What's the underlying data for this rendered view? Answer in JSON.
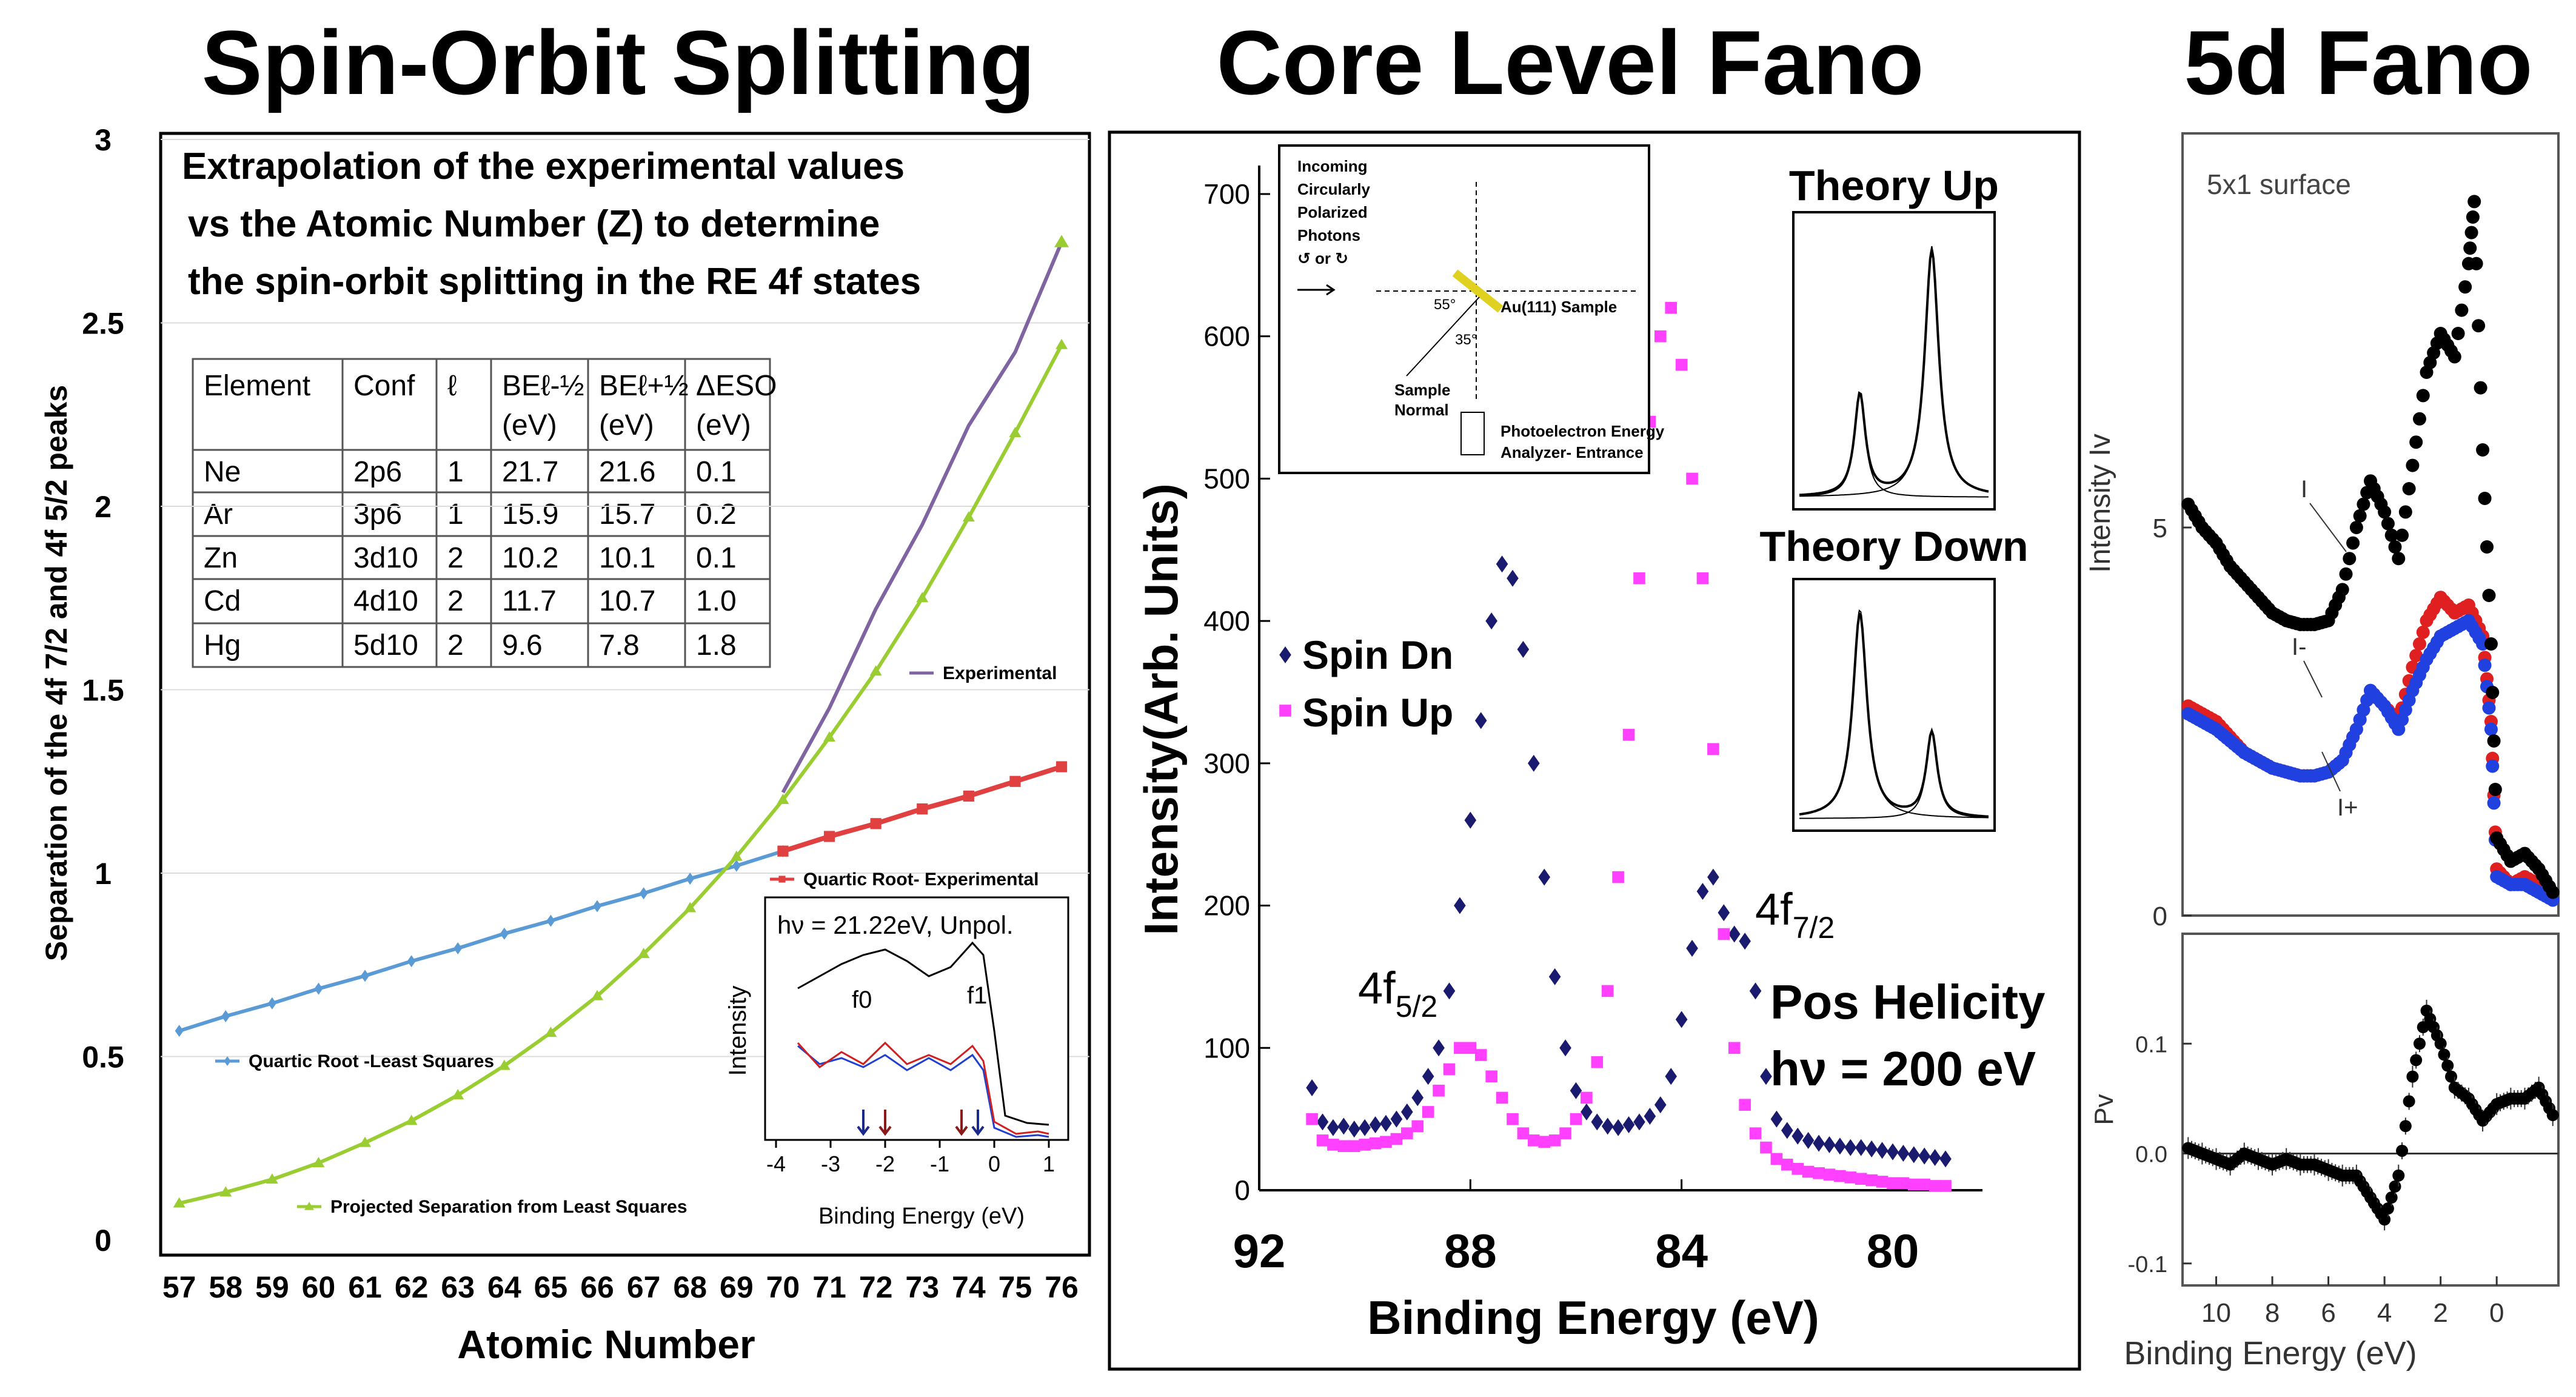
{
  "chart_data": [
    {
      "type": "line",
      "panel_title": "Spin-Orbit Splitting",
      "annotation": [
        "Extrapolation of the experimental values",
        "vs the Atomic Number (Z) to determine",
        "the spin-orbit splitting  in the RE 4f states"
      ],
      "xlabel": "Atomic Number",
      "ylabel": "Separation of the 4f 7/2 and 4f 5/2 peaks",
      "xlim": [
        56.6,
        76.6
      ],
      "ylim": [
        0,
        3
      ],
      "x_ticks": [
        57,
        58,
        59,
        60,
        61,
        62,
        63,
        64,
        65,
        66,
        67,
        68,
        69,
        70,
        71,
        72,
        73,
        74,
        75,
        76
      ],
      "y_ticks": [
        0,
        0.5,
        1,
        1.5,
        2,
        2.5,
        3
      ],
      "y_tick_labels": [
        "0",
        "0.5",
        "1",
        "1.5",
        "2",
        "2.5",
        "3"
      ],
      "series": [
        {
          "name": "Quartic Root -Least Squares",
          "color": "#5b9bd5",
          "marker": "diamond",
          "x": [
            57,
            58,
            59,
            60,
            61,
            62,
            63,
            64,
            65,
            66,
            67,
            68,
            69,
            70
          ],
          "y": [
            0.57,
            0.61,
            0.645,
            0.685,
            0.72,
            0.76,
            0.795,
            0.835,
            0.87,
            0.91,
            0.945,
            0.985,
            1.02,
            1.06
          ]
        },
        {
          "name": "Quartic Root- Experimental",
          "color": "#e04040",
          "marker": "square",
          "x": [
            70,
            71,
            72,
            73,
            74,
            75,
            76
          ],
          "y": [
            1.06,
            1.1,
            1.135,
            1.175,
            1.21,
            1.25,
            1.29
          ]
        },
        {
          "name": "Projected Separation from Least Squares",
          "color": "#9acd32",
          "marker": "triangle",
          "x": [
            57,
            58,
            59,
            60,
            61,
            62,
            63,
            64,
            65,
            66,
            67,
            68,
            69,
            70,
            71,
            72,
            73,
            74,
            75,
            76
          ],
          "y": [
            0.1,
            0.13,
            0.165,
            0.21,
            0.265,
            0.325,
            0.395,
            0.475,
            0.565,
            0.665,
            0.78,
            0.905,
            1.045,
            1.2,
            1.37,
            1.55,
            1.75,
            1.97,
            2.2,
            2.44
          ]
        },
        {
          "name": "Experimental",
          "color": "#8064a2",
          "marker": "none",
          "x": [
            70,
            71,
            72,
            73,
            74,
            75,
            76
          ],
          "y": [
            1.22,
            1.45,
            1.72,
            1.95,
            2.22,
            2.42,
            2.72
          ]
        }
      ],
      "extra_point": {
        "x": 76,
        "y": 2.72
      },
      "table": {
        "headers": [
          "Element",
          "Conf",
          "ℓ",
          "BEℓ-½ (eV)",
          "BEℓ+½ (eV)",
          "ΔESO (eV)"
        ],
        "rows": [
          [
            "Ne",
            "2p6",
            "1",
            "21.7",
            "21.6",
            "0.1"
          ],
          [
            "Ar",
            "3p6",
            "1",
            "15.9",
            "15.7",
            "0.2"
          ],
          [
            "Zn",
            "3d10",
            "2",
            "10.2",
            "10.1",
            "0.1"
          ],
          [
            "Cd",
            "4d10",
            "2",
            "11.7",
            "10.7",
            "1.0"
          ],
          [
            "Hg",
            "5d10",
            "2",
            "9.6",
            "7.8",
            "1.8"
          ]
        ]
      },
      "inset": {
        "title": "hν = 21.22eV, Unpol.",
        "xlabel": "Binding Energy (eV)",
        "ylabel": "Intensity",
        "x_ticks": [
          -4,
          -3,
          -2,
          -1,
          0,
          1
        ],
        "peak_labels": [
          "f0",
          "f1"
        ],
        "series": [
          {
            "name": "total",
            "color": "#000000"
          },
          {
            "name": "blue",
            "color": "#2040d0"
          },
          {
            "name": "red",
            "color": "#d02020"
          }
        ]
      }
    },
    {
      "type": "scatter",
      "panel_title": "Core Level Fano",
      "xlabel": "Binding Energy (eV)",
      "ylabel": "Intensity(Arb. Units)",
      "xlim": [
        92,
        78.3
      ],
      "ylim": [
        0,
        720
      ],
      "x_ticks": [
        92,
        88,
        84,
        80
      ],
      "y_ticks": [
        0,
        100,
        200,
        300,
        400,
        500,
        600,
        700
      ],
      "series": [
        {
          "name": "Spin Dn",
          "color": "#1a1a6e",
          "marker": "diamond",
          "x": [
            91.0,
            90.8,
            90.6,
            90.4,
            90.2,
            90.0,
            89.8,
            89.6,
            89.4,
            89.2,
            89.0,
            88.8,
            88.6,
            88.4,
            88.2,
            88.0,
            87.8,
            87.6,
            87.4,
            87.2,
            87.0,
            86.8,
            86.6,
            86.4,
            86.2,
            86.0,
            85.8,
            85.6,
            85.4,
            85.2,
            85.0,
            84.8,
            84.6,
            84.4,
            84.2,
            84.0,
            83.8,
            83.6,
            83.4,
            83.2,
            83.0,
            82.8,
            82.6,
            82.4,
            82.2,
            82.0,
            81.8,
            81.6,
            81.4,
            81.2,
            81.0,
            80.8,
            80.6,
            80.4,
            80.2,
            80.0,
            79.8,
            79.6,
            79.4,
            79.2,
            79.0
          ],
          "y": [
            72,
            48,
            44,
            45,
            43,
            44,
            46,
            47,
            50,
            55,
            65,
            80,
            100,
            140,
            200,
            260,
            330,
            400,
            440,
            430,
            380,
            300,
            220,
            150,
            100,
            70,
            55,
            48,
            45,
            44,
            46,
            48,
            52,
            60,
            80,
            120,
            170,
            210,
            220,
            195,
            180,
            175,
            140,
            80,
            50,
            42,
            38,
            35,
            33,
            32,
            31,
            30,
            30,
            29,
            28,
            27,
            26,
            25,
            24,
            23,
            22
          ]
        },
        {
          "name": "Spin Up",
          "color": "#ff40ff",
          "marker": "square",
          "x": [
            91.0,
            90.8,
            90.6,
            90.4,
            90.2,
            90.0,
            89.8,
            89.6,
            89.4,
            89.2,
            89.0,
            88.8,
            88.6,
            88.4,
            88.2,
            88.0,
            87.8,
            87.6,
            87.4,
            87.2,
            87.0,
            86.8,
            86.6,
            86.4,
            86.2,
            86.0,
            85.8,
            85.6,
            85.4,
            85.2,
            85.0,
            84.8,
            84.6,
            84.4,
            84.2,
            84.0,
            83.8,
            83.6,
            83.4,
            83.2,
            83.0,
            82.8,
            82.6,
            82.4,
            82.2,
            82.0,
            81.8,
            81.6,
            81.4,
            81.2,
            81.0,
            80.8,
            80.6,
            80.4,
            80.2,
            80.0,
            79.8,
            79.6,
            79.4,
            79.2,
            79.0
          ],
          "y": [
            50,
            35,
            32,
            31,
            31,
            32,
            33,
            34,
            36,
            40,
            45,
            55,
            70,
            85,
            100,
            100,
            95,
            80,
            65,
            50,
            40,
            35,
            34,
            35,
            40,
            50,
            65,
            90,
            140,
            220,
            320,
            430,
            540,
            600,
            620,
            580,
            500,
            430,
            310,
            180,
            100,
            60,
            40,
            30,
            22,
            18,
            15,
            13,
            12,
            11,
            10,
            9,
            8,
            7,
            6,
            5,
            5,
            4,
            4,
            3,
            3
          ]
        }
      ],
      "peak_labels": [
        "4f5/2",
        "4f7/2"
      ],
      "annotations": [
        "Pos Helicity",
        "hν = 200 eV"
      ],
      "schematic": {
        "labels": [
          "Incoming",
          "Circularly",
          "Polarized",
          "Photons",
          "↺ or ↻",
          "55°",
          "35°",
          "Au(111) Sample",
          "Sample",
          "Normal",
          "Photoelectron Energy",
          "Analyzer- Entrance"
        ]
      },
      "insets": [
        {
          "title": "Theory Up",
          "small_peak_x": 0.32,
          "big_peak_x": 0.7
        },
        {
          "title": "Theory Down",
          "big_peak_x": 0.32,
          "small_peak_x": 0.7
        }
      ]
    },
    {
      "type": "scatter",
      "panel_title": "5d Fano",
      "subpanels": [
        {
          "label": "5x1 surface",
          "ylabel": "Intensity Iv",
          "xlim": [
            11.2,
            -2.2
          ],
          "ylim": [
            0,
            10
          ],
          "y_ticks": [
            0,
            5
          ],
          "curve_labels": [
            "I",
            "I-",
            "I+"
          ],
          "series": [
            {
              "name": "I",
              "color": "#000000",
              "x": [
                11,
                10.5,
                10,
                9.5,
                9,
                8.5,
                8,
                7.5,
                7,
                6.5,
                6,
                5.5,
                5,
                4.5,
                4,
                3.5,
                3,
                2.5,
                2,
                1.5,
                1,
                0.8,
                0.5,
                0.2,
                0,
                -0.5,
                -1,
                -1.5,
                -2
              ],
              "y": [
                5.3,
                5.0,
                4.8,
                4.5,
                4.3,
                4.1,
                3.9,
                3.8,
                3.75,
                3.75,
                3.8,
                4.2,
                5.0,
                5.6,
                5.2,
                4.6,
                5.8,
                7.0,
                7.5,
                7.2,
                8.4,
                9.2,
                6.0,
                3.5,
                1.0,
                0.7,
                0.8,
                0.6,
                0.3
              ]
            },
            {
              "name": "I-",
              "color": "#e02020",
              "x": [
                11,
                10.5,
                10,
                9.5,
                9,
                8.5,
                8,
                7.5,
                7,
                6.5,
                6,
                5.5,
                5,
                4.5,
                4,
                3.5,
                3,
                2.5,
                2,
                1.5,
                1,
                0.5,
                0.2,
                0,
                -0.5,
                -1,
                -1.5,
                -2
              ],
              "y": [
                2.7,
                2.6,
                2.5,
                2.3,
                2.1,
                2.0,
                1.9,
                1.85,
                1.8,
                1.8,
                1.85,
                2.0,
                2.4,
                2.9,
                2.7,
                2.5,
                3.2,
                3.8,
                4.1,
                3.9,
                4.0,
                3.6,
                2.5,
                0.6,
                0.4,
                0.5,
                0.4,
                0.2
              ]
            },
            {
              "name": "I+",
              "color": "#2040e0",
              "x": [
                11,
                10.5,
                10,
                9.5,
                9,
                8.5,
                8,
                7.5,
                7,
                6.5,
                6,
                5.5,
                5,
                4.5,
                4,
                3.5,
                3,
                2.5,
                2,
                1.5,
                1,
                0.5,
                0.2,
                0,
                -0.5,
                -1,
                -1.5,
                -2
              ],
              "y": [
                2.6,
                2.5,
                2.4,
                2.25,
                2.1,
                2.0,
                1.9,
                1.85,
                1.8,
                1.8,
                1.85,
                2.0,
                2.4,
                2.9,
                2.7,
                2.4,
                2.9,
                3.3,
                3.6,
                3.7,
                3.8,
                3.5,
                2.4,
                0.5,
                0.4,
                0.4,
                0.3,
                0.2
              ]
            }
          ]
        },
        {
          "ylabel": "Pv",
          "xlabel": "Binding Energy (eV)",
          "xlim": [
            11.2,
            -2.2
          ],
          "ylim": [
            -0.12,
            0.2
          ],
          "y_ticks": [
            0.1,
            0.0,
            -0.1
          ],
          "y_tick_labels": [
            "0.1",
            "0.0",
            "-0.1"
          ],
          "x_ticks": [
            10,
            8,
            6,
            4,
            2,
            0
          ],
          "series": [
            {
              "name": "Pv",
              "color": "#000000",
              "x": [
                11,
                10.5,
                10,
                9.5,
                9,
                8.5,
                8,
                7.5,
                7,
                6.5,
                6,
                5.5,
                5,
                4.5,
                4,
                3.5,
                3,
                2.5,
                2,
                1.5,
                1,
                0.5,
                0,
                -0.5,
                -1,
                -1.5,
                -2
              ],
              "y": [
                0.005,
                0.0,
                -0.005,
                -0.01,
                0.0,
                -0.005,
                -0.01,
                -0.005,
                -0.01,
                -0.01,
                -0.015,
                -0.02,
                -0.02,
                -0.04,
                -0.06,
                -0.02,
                0.07,
                0.13,
                0.1,
                0.06,
                0.05,
                0.03,
                0.045,
                0.05,
                0.05,
                0.06,
                0.035
              ]
            }
          ]
        }
      ]
    }
  ]
}
